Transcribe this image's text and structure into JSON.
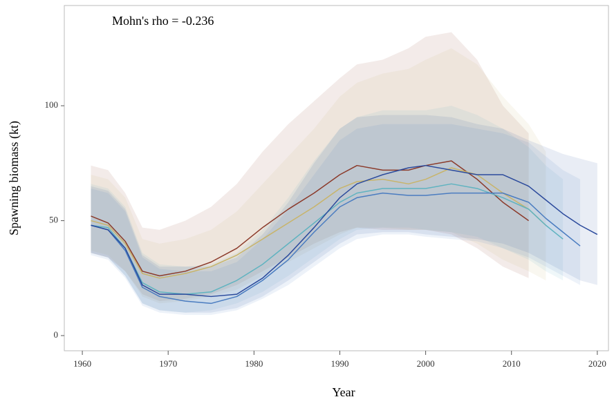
{
  "chart_data": {
    "type": "line",
    "annotation": "Mohn's rho = -0.236",
    "xlabel": "Year",
    "ylabel": "Spawning biomass (kt)",
    "x": [
      1961,
      1963,
      1965,
      1967,
      1969,
      1972,
      1975,
      1978,
      1981,
      1984,
      1987,
      1990,
      1992,
      1995,
      1998,
      2000,
      2003,
      2006,
      2009,
      2012,
      2014,
      2016,
      2018,
      2020
    ],
    "xlim": [
      1957.9,
      2021.3
    ],
    "xticks": [
      1960,
      1970,
      1980,
      1990,
      2000,
      2010,
      2020
    ],
    "ylim": [
      -6.6,
      143.6
    ],
    "yticks": [
      0,
      50,
      100
    ],
    "series": [
      {
        "color": "#8b3a2a",
        "values": [
          52,
          49,
          41,
          28,
          26,
          28,
          32,
          38,
          47,
          55,
          62,
          70,
          74,
          72,
          72,
          74,
          76,
          68,
          58,
          50,
          null,
          null,
          null,
          null
        ],
        "upper": [
          74,
          72,
          62,
          47,
          46,
          50,
          56,
          66,
          80,
          92,
          102,
          112,
          118,
          120,
          125,
          130,
          132,
          120,
          100,
          88,
          null,
          null,
          null,
          null
        ],
        "lower": [
          36,
          34,
          28,
          18,
          15,
          16,
          18,
          22,
          28,
          34,
          40,
          45,
          47,
          46,
          46,
          46,
          44,
          38,
          30,
          25,
          null,
          null,
          null,
          null
        ]
      },
      {
        "color": "#c8b46a",
        "values": [
          50,
          48,
          40,
          27,
          25,
          27,
          30,
          35,
          42,
          49,
          56,
          64,
          67,
          68,
          66,
          68,
          73,
          70,
          62,
          55,
          48,
          null,
          null,
          null
        ],
        "upper": [
          70,
          68,
          60,
          42,
          40,
          42,
          46,
          54,
          66,
          78,
          90,
          104,
          110,
          114,
          116,
          120,
          125,
          118,
          104,
          92,
          80,
          null,
          null,
          null
        ],
        "lower": [
          37,
          35,
          28,
          17,
          14,
          15,
          17,
          20,
          26,
          32,
          38,
          44,
          47,
          47,
          46,
          46,
          45,
          40,
          33,
          28,
          24,
          null,
          null,
          null
        ]
      },
      {
        "color": "#5fb3c0",
        "values": [
          48,
          47,
          38,
          23,
          19,
          18,
          19,
          24,
          31,
          40,
          49,
          58,
          62,
          64,
          64,
          64,
          66,
          64,
          60,
          55,
          48,
          42,
          null,
          null
        ],
        "upper": [
          66,
          64,
          56,
          36,
          31,
          30,
          31,
          36,
          46,
          60,
          76,
          90,
          95,
          98,
          98,
          98,
          100,
          96,
          90,
          82,
          74,
          68,
          null,
          null
        ],
        "lower": [
          36,
          34,
          26,
          14,
          11,
          10,
          11,
          14,
          19,
          26,
          34,
          42,
          46,
          47,
          47,
          46,
          45,
          43,
          38,
          33,
          28,
          24,
          null,
          null
        ]
      },
      {
        "color": "#4a7cc0",
        "values": [
          48,
          46,
          37,
          21,
          17,
          15,
          14,
          17,
          24,
          33,
          45,
          56,
          60,
          62,
          61,
          61,
          62,
          62,
          62,
          58,
          51,
          45,
          39,
          null
        ],
        "upper": [
          64,
          62,
          54,
          34,
          29,
          28,
          28,
          32,
          42,
          55,
          70,
          85,
          90,
          92,
          92,
          92,
          92,
          90,
          88,
          84,
          78,
          72,
          68,
          null
        ],
        "lower": [
          35,
          33,
          25,
          13,
          10,
          9,
          9,
          11,
          16,
          22,
          30,
          38,
          42,
          44,
          44,
          43,
          42,
          41,
          38,
          34,
          30,
          26,
          22,
          null
        ]
      },
      {
        "color": "#2b4a9c",
        "values": [
          48,
          46,
          38,
          22,
          18,
          18,
          17,
          18,
          25,
          35,
          47,
          60,
          66,
          70,
          73,
          74,
          72,
          70,
          70,
          65,
          59,
          53,
          48,
          44
        ],
        "upper": [
          65,
          63,
          55,
          35,
          30,
          30,
          30,
          34,
          44,
          58,
          75,
          90,
          95,
          96,
          96,
          96,
          95,
          92,
          90,
          85,
          82,
          79,
          77,
          75
        ],
        "lower": [
          36,
          34,
          26,
          14,
          11,
          10,
          10,
          12,
          17,
          24,
          32,
          40,
          44,
          45,
          45,
          44,
          43,
          42,
          40,
          36,
          32,
          28,
          24,
          22
        ]
      }
    ]
  }
}
